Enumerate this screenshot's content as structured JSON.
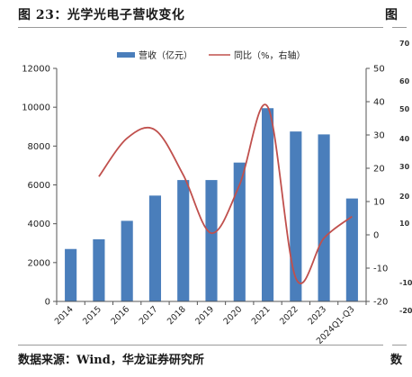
{
  "figure": {
    "title": "图 23：光学光电子营收变化",
    "next_title": "图",
    "source": "数据来源：Wind，华龙证券研究所",
    "next_source": "数"
  },
  "side_panel": {
    "ticks": [
      "70",
      "60",
      "50",
      "40",
      "30",
      "20",
      "10",
      "-10",
      "-20"
    ]
  },
  "chart_data": {
    "type": "bar",
    "categories": [
      "2014",
      "2015",
      "2016",
      "2017",
      "2018",
      "2019",
      "2020",
      "2021",
      "2022",
      "2023",
      "2024Q1-Q3"
    ],
    "series": [
      {
        "name": "营收（亿元）",
        "type": "bar",
        "axis": "left",
        "color": "#4a7ebb",
        "values": [
          2700,
          3200,
          4150,
          5450,
          6250,
          6250,
          7150,
          9950,
          8750,
          8600,
          5300
        ]
      },
      {
        "name": "同比（%，右轴）",
        "type": "line",
        "axis": "right",
        "color": "#c0504d",
        "smooth": true,
        "values": [
          null,
          17.5,
          29,
          31.5,
          18,
          0.5,
          15,
          38.5,
          -13,
          -1,
          5.5
        ]
      }
    ],
    "y_left": {
      "min": 0,
      "max": 12000,
      "ticks": [
        "0",
        "2000",
        "4000",
        "6000",
        "8000",
        "10000",
        "12000"
      ]
    },
    "y_right": {
      "min": -20,
      "max": 50,
      "ticks": [
        "-20",
        "-10",
        "0",
        "10",
        "20",
        "30",
        "40",
        "50"
      ]
    },
    "legend": "top-center",
    "grid": false
  }
}
